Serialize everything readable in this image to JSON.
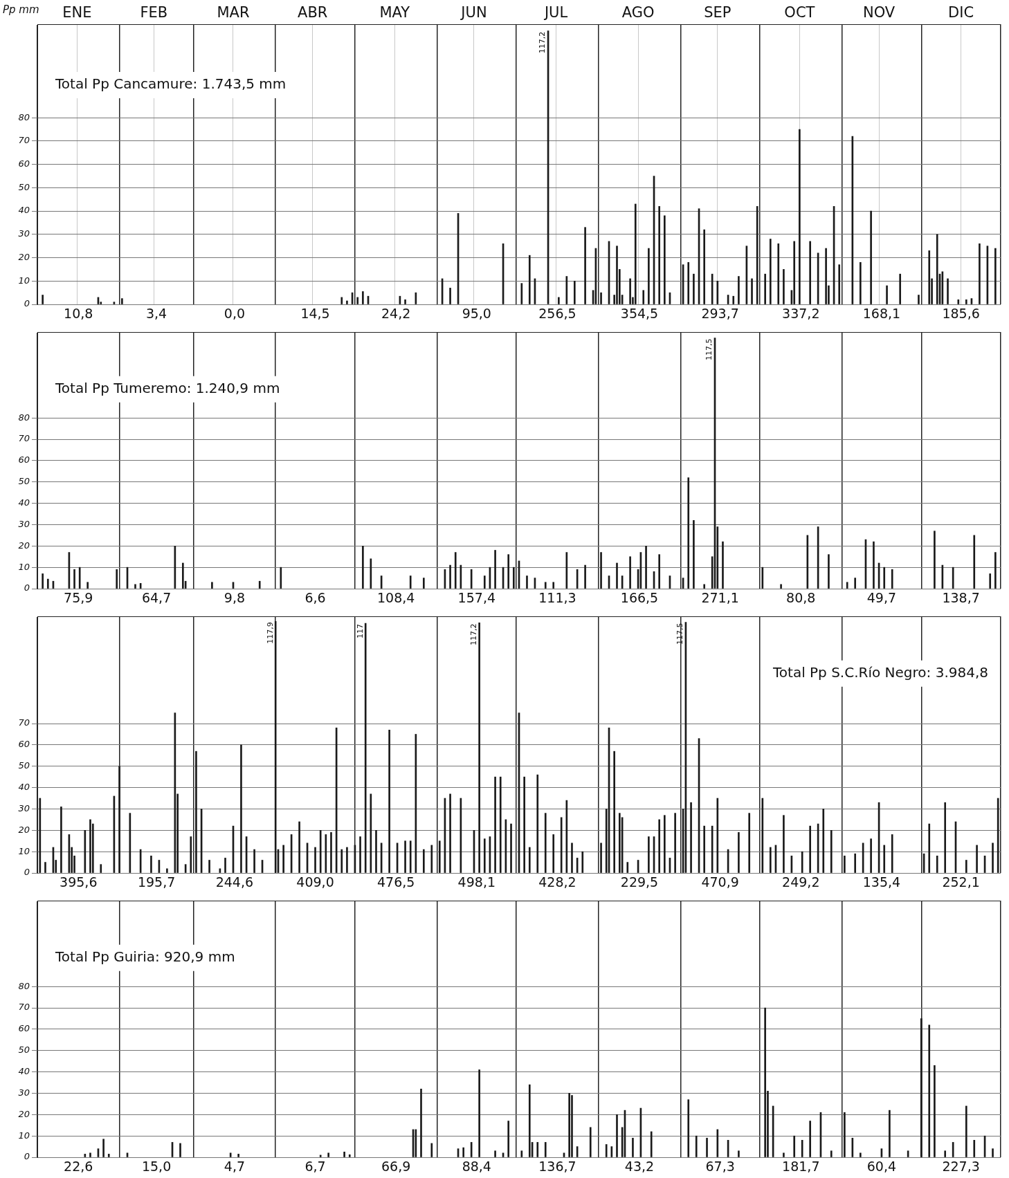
{
  "chart_data": [
    {
      "type": "bar",
      "title": "Total Pp Cancamure: 1.743,5 mm",
      "ylabel": "Pp mm",
      "color": "#1a1a1a",
      "grid": true,
      "xlim": [
        "--01-01",
        "--12-31"
      ],
      "ylim": [
        0,
        120
      ],
      "yticks": [
        0,
        10,
        20,
        30,
        40,
        50,
        60,
        70,
        80
      ],
      "xticks": [
        {
          "value": "--01-01",
          "label": null
        },
        {
          "value": "--01-16",
          "label": "ENE"
        },
        {
          "value": "--02-01",
          "label": null
        },
        {
          "value": "--02-14",
          "label": "FEB"
        },
        {
          "value": "--03-01",
          "label": null
        },
        {
          "value": "--03-16",
          "label": "MAR"
        },
        {
          "value": "--04-01",
          "label": null
        },
        {
          "value": "--04-15",
          "label": "ABR"
        },
        {
          "value": "--05-01",
          "label": null
        },
        {
          "value": "--05-16",
          "label": "MAY"
        },
        {
          "value": "--06-01",
          "label": null
        },
        {
          "value": "--06-15",
          "label": "JUN"
        },
        {
          "value": "--07-01",
          "label": null
        },
        {
          "value": "--07-16",
          "label": "JUL"
        },
        {
          "value": "--08-01",
          "label": null
        },
        {
          "value": "--08-16",
          "label": "AGO"
        },
        {
          "value": "--09-01",
          "label": null
        },
        {
          "value": "--09-15",
          "label": "SEP"
        },
        {
          "value": "--10-01",
          "label": null
        },
        {
          "value": "--10-16",
          "label": "OCT"
        },
        {
          "value": "--11-01",
          "label": null
        },
        {
          "value": "--11-15",
          "label": "NOV"
        },
        {
          "value": "--12-01",
          "label": null
        },
        {
          "value": "--12-16",
          "label": "DIC"
        },
        {
          "value": "--12-31",
          "label": null
        }
      ],
      "x": [
        "--01-03",
        "--01-24",
        "--01-25",
        "--01-30",
        "--02-02",
        "--04-26",
        "--04-28",
        "--04-30",
        "--05-02",
        "--05-04",
        "--05-06",
        "--05-18",
        "--05-20",
        "--05-24",
        "--06-03",
        "--06-06",
        "--06-09",
        "--06-26",
        "--07-03",
        "--07-06",
        "--07-08",
        "--07-13",
        "--07-17",
        "--07-20",
        "--07-23",
        "--07-27",
        "--07-30",
        "--07-31",
        "--08-02",
        "--08-05",
        "--08-07",
        "--08-08",
        "--08-09",
        "--08-10",
        "--08-13",
        "--08-14",
        "--08-15",
        "--08-18",
        "--08-20",
        "--08-22",
        "--08-24",
        "--08-26",
        "--08-28",
        "--09-02",
        "--09-04",
        "--09-06",
        "--09-08",
        "--09-10",
        "--09-13",
        "--09-15",
        "--09-19",
        "--09-21",
        "--09-23",
        "--09-26",
        "--09-28",
        "--09-30",
        "--10-03",
        "--10-05",
        "--10-08",
        "--10-10",
        "--10-13",
        "--10-14",
        "--10-16",
        "--10-20",
        "--10-23",
        "--10-26",
        "--10-27",
        "--10-29",
        "--10-31",
        "--11-05",
        "--11-08",
        "--11-12",
        "--11-18",
        "--11-23",
        "--11-30",
        "--12-04",
        "--12-05",
        "--12-07",
        "--12-08",
        "--12-09",
        "--12-11",
        "--12-15",
        "--12-18",
        "--12-20",
        "--12-23",
        "--12-26",
        "--12-29"
      ],
      "values": [
        4,
        3,
        1,
        1,
        2.5,
        3,
        1.5,
        5,
        3,
        5.5,
        3.5,
        3.5,
        2,
        5,
        11,
        7,
        39,
        26,
        9,
        21,
        11,
        117.2,
        3,
        12,
        10,
        33,
        6,
        24,
        5,
        27,
        4,
        25,
        15,
        4,
        11,
        3,
        43,
        6,
        24,
        55,
        42,
        38,
        5,
        17,
        18,
        13,
        41,
        32,
        13,
        10,
        4,
        3.5,
        12,
        25,
        11,
        42,
        13,
        28,
        26,
        15,
        6,
        27,
        75,
        27,
        22,
        24,
        8,
        42,
        17,
        72,
        18,
        40,
        8,
        13,
        4,
        23,
        11,
        30,
        13,
        14,
        11,
        2,
        2,
        2.5,
        26,
        25,
        24
      ],
      "annotations": [
        {
          "text": "117,2",
          "x": "--07-13",
          "y": 117.2
        },
        "10,8",
        "3,4",
        "0,0",
        "14,5",
        "24,2",
        "95,0",
        "256,5",
        "354,5",
        "293,7",
        "337,2",
        "168,1",
        "185,6"
      ]
    },
    {
      "type": "bar",
      "title": "Total Pp Tumeremo: 1.240,9 mm",
      "color": "#1a1a1a",
      "grid": true,
      "tick_labels": "y",
      "xlim": [
        "--01-01",
        "--12-31"
      ],
      "ylim": [
        0,
        120
      ],
      "yticks": [
        0,
        10,
        20,
        30,
        40,
        50,
        60,
        70,
        80
      ],
      "xticks": [
        {
          "value": "--01-01",
          "label": null
        },
        {
          "value": "--02-01",
          "label": null
        },
        {
          "value": "--03-01",
          "label": null
        },
        {
          "value": "--04-01",
          "label": null
        },
        {
          "value": "--05-01",
          "label": null
        },
        {
          "value": "--06-01",
          "label": null
        },
        {
          "value": "--07-01",
          "label": null
        },
        {
          "value": "--08-01",
          "label": null
        },
        {
          "value": "--09-01",
          "label": null
        },
        {
          "value": "--10-01",
          "label": null
        },
        {
          "value": "--11-01",
          "label": null
        },
        {
          "value": "--12-01",
          "label": null
        },
        {
          "value": "--12-31",
          "label": null
        }
      ],
      "x": [
        "--01-03",
        "--01-05",
        "--01-07",
        "--01-13",
        "--01-15",
        "--01-17",
        "--01-20",
        "--01-31",
        "--02-04",
        "--02-07",
        "--02-09",
        "--02-22",
        "--02-25",
        "--02-26",
        "--03-08",
        "--03-16",
        "--03-26",
        "--04-03",
        "--05-04",
        "--05-07",
        "--05-11",
        "--05-22",
        "--05-27",
        "--06-04",
        "--06-06",
        "--06-08",
        "--06-10",
        "--06-14",
        "--06-19",
        "--06-21",
        "--06-23",
        "--06-26",
        "--06-28",
        "--06-30",
        "--07-02",
        "--07-05",
        "--07-08",
        "--07-12",
        "--07-15",
        "--07-20",
        "--07-24",
        "--07-27",
        "--08-02",
        "--08-05",
        "--08-08",
        "--08-10",
        "--08-13",
        "--08-16",
        "--08-17",
        "--08-19",
        "--08-22",
        "--08-24",
        "--08-28",
        "--09-02",
        "--09-04",
        "--09-06",
        "--09-10",
        "--09-13",
        "--09-14",
        "--09-15",
        "--09-17",
        "--10-02",
        "--10-09",
        "--10-19",
        "--10-23",
        "--10-27",
        "--11-03",
        "--11-06",
        "--11-10",
        "--11-13",
        "--11-15",
        "--11-17",
        "--11-20",
        "--12-06",
        "--12-09",
        "--12-13",
        "--12-21",
        "--12-27",
        "--12-29"
      ],
      "values": [
        7,
        4.5,
        3.5,
        17,
        9,
        10,
        3,
        9,
        10,
        2,
        2.5,
        20,
        12,
        3.5,
        3,
        3,
        3.5,
        10,
        20,
        14,
        6,
        6,
        5,
        9,
        11,
        17,
        11,
        9,
        6,
        10,
        18,
        10,
        16,
        10,
        13,
        6,
        5,
        3,
        3,
        17,
        9,
        11,
        17,
        6,
        12,
        6,
        15,
        9,
        17,
        20,
        8,
        16,
        6,
        5,
        52,
        32,
        2,
        15,
        117.5,
        29,
        22,
        10,
        2,
        25,
        29,
        16,
        3,
        5,
        23,
        22,
        12,
        10,
        9,
        27,
        11,
        10,
        25,
        7,
        17
      ],
      "annotations": [
        {
          "text": "117,5",
          "x": "--09-14",
          "y": 117.5
        },
        "75,9",
        "64,7",
        "9,8",
        "6,6",
        "108,4",
        "157,4",
        "111,3",
        "166,5",
        "271,1",
        "80,8",
        "49,7",
        "138,7"
      ]
    },
    {
      "type": "bar",
      "title": "Total Pp S.C.Río Negro: 3.984,8",
      "color": "#1a1a1a",
      "grid": true,
      "tick_labels": "y",
      "xlim": [
        "--01-01",
        "--12-31"
      ],
      "ylim": [
        0,
        120
      ],
      "yticks": [
        0,
        10,
        20,
        30,
        40,
        50,
        60,
        70
      ],
      "xticks": [
        {
          "value": "--01-01",
          "label": null
        },
        {
          "value": "--02-01",
          "label": null
        },
        {
          "value": "--03-01",
          "label": null
        },
        {
          "value": "--04-01",
          "label": null
        },
        {
          "value": "--05-01",
          "label": null
        },
        {
          "value": "--06-01",
          "label": null
        },
        {
          "value": "--07-01",
          "label": null
        },
        {
          "value": "--08-01",
          "label": null
        },
        {
          "value": "--09-01",
          "label": null
        },
        {
          "value": "--10-01",
          "label": null
        },
        {
          "value": "--11-01",
          "label": null
        },
        {
          "value": "--12-01",
          "label": null
        },
        {
          "value": "--12-31",
          "label": null
        }
      ],
      "x": [
        "--01-02",
        "--01-04",
        "--01-07",
        "--01-08",
        "--01-10",
        "--01-13",
        "--01-14",
        "--01-15",
        "--01-19",
        "--01-21",
        "--01-22",
        "--01-25",
        "--01-30",
        "--02-01",
        "--02-05",
        "--02-09",
        "--02-13",
        "--02-16",
        "--02-19",
        "--02-22",
        "--02-23",
        "--02-26",
        "--02-28",
        "--03-02",
        "--03-04",
        "--03-07",
        "--03-11",
        "--03-13",
        "--03-16",
        "--03-19",
        "--03-21",
        "--03-24",
        "--03-27",
        "--04-01",
        "--04-02",
        "--04-04",
        "--04-07",
        "--04-10",
        "--04-13",
        "--04-16",
        "--04-18",
        "--04-20",
        "--04-22",
        "--04-24",
        "--04-26",
        "--04-28",
        "--05-01",
        "--05-03",
        "--05-05",
        "--05-07",
        "--05-09",
        "--05-11",
        "--05-14",
        "--05-17",
        "--05-20",
        "--05-22",
        "--05-24",
        "--05-27",
        "--05-30",
        "--06-02",
        "--06-04",
        "--06-06",
        "--06-10",
        "--06-15",
        "--06-17",
        "--06-19",
        "--06-21",
        "--06-23",
        "--06-25",
        "--06-27",
        "--06-29",
        "--07-02",
        "--07-04",
        "--07-06",
        "--07-09",
        "--07-12",
        "--07-15",
        "--07-18",
        "--07-20",
        "--07-22",
        "--07-24",
        "--07-26",
        "--08-02",
        "--08-04",
        "--08-05",
        "--08-07",
        "--08-09",
        "--08-10",
        "--08-12",
        "--08-16",
        "--08-20",
        "--08-22",
        "--08-24",
        "--08-26",
        "--08-28",
        "--08-30",
        "--09-02",
        "--09-03",
        "--09-05",
        "--09-08",
        "--09-10",
        "--09-13",
        "--09-15",
        "--09-19",
        "--09-23",
        "--09-27",
        "--10-02",
        "--10-05",
        "--10-07",
        "--10-10",
        "--10-13",
        "--10-17",
        "--10-20",
        "--10-23",
        "--10-25",
        "--10-28",
        "--11-02",
        "--11-06",
        "--11-09",
        "--11-12",
        "--11-15",
        "--11-17",
        "--11-20",
        "--12-02",
        "--12-04",
        "--12-07",
        "--12-10",
        "--12-14",
        "--12-18",
        "--12-22",
        "--12-25",
        "--12-28",
        "--12-30"
      ],
      "values": [
        35,
        5,
        12,
        6,
        31,
        18,
        12,
        8,
        20,
        25,
        23,
        4,
        36,
        50,
        28,
        11,
        8,
        6,
        2,
        75,
        37,
        4,
        17,
        57,
        30,
        6,
        2,
        7,
        22,
        60,
        17,
        11,
        6,
        117.9,
        11,
        13,
        18,
        24,
        14,
        12,
        20,
        18,
        19,
        68,
        11,
        12,
        13,
        17,
        117,
        37,
        20,
        14,
        67,
        14,
        15,
        15,
        65,
        11,
        13,
        15,
        35,
        37,
        35,
        20,
        117.2,
        16,
        17,
        45,
        45,
        25,
        23,
        75,
        45,
        12,
        46,
        28,
        18,
        26,
        34,
        14,
        7,
        10,
        14,
        30,
        68,
        57,
        28,
        26,
        5,
        6,
        17,
        17,
        25,
        27,
        7,
        28,
        30,
        117.5,
        33,
        63,
        22,
        22,
        35,
        11,
        19,
        28,
        35,
        12,
        13,
        27,
        8,
        10,
        22,
        23,
        30,
        20,
        8,
        9,
        14,
        16,
        33,
        13,
        18,
        9,
        23,
        8,
        33,
        24,
        6,
        13,
        8,
        14,
        35
      ],
      "annotations": [
        {
          "text": "117,9",
          "x": "--04-01",
          "y": 117.9
        },
        {
          "text": "117",
          "x": "--05-05",
          "y": 117
        },
        {
          "text": "117,2",
          "x": "--06-17",
          "y": 117.2
        },
        {
          "text": "117,5",
          "x": "--09-03",
          "y": 117.5
        },
        "395,6",
        "195,7",
        "244,6",
        "409,0",
        "476,5",
        "498,1",
        "428,2",
        "229,5",
        "470,9",
        "249,2",
        "135,4",
        "252,1"
      ]
    },
    {
      "type": "bar",
      "title": "Total Pp Guiria: 920,9 mm",
      "color": "#1a1a1a",
      "grid": true,
      "tick_labels": "y",
      "xlim": [
        "--01-01",
        "--12-31"
      ],
      "ylim": [
        0,
        120
      ],
      "yticks": [
        0,
        10,
        20,
        30,
        40,
        50,
        60,
        70,
        80
      ],
      "xticks": [
        {
          "value": "--01-01",
          "label": null
        },
        {
          "value": "--02-01",
          "label": null
        },
        {
          "value": "--03-01",
          "label": null
        },
        {
          "value": "--04-01",
          "label": null
        },
        {
          "value": "--05-01",
          "label": null
        },
        {
          "value": "--06-01",
          "label": null
        },
        {
          "value": "--07-01",
          "label": null
        },
        {
          "value": "--08-01",
          "label": null
        },
        {
          "value": "--09-01",
          "label": null
        },
        {
          "value": "--10-01",
          "label": null
        },
        {
          "value": "--11-01",
          "label": null
        },
        {
          "value": "--12-01",
          "label": null
        },
        {
          "value": "--12-31",
          "label": null
        }
      ],
      "x": [
        "--01-19",
        "--01-21",
        "--01-24",
        "--01-26",
        "--01-28",
        "--02-04",
        "--02-21",
        "--02-24",
        "--03-15",
        "--03-18",
        "--04-18",
        "--04-21",
        "--04-27",
        "--04-29",
        "--05-23",
        "--05-24",
        "--05-26",
        "--05-30",
        "--06-09",
        "--06-11",
        "--06-14",
        "--06-17",
        "--06-23",
        "--06-26",
        "--06-28",
        "--07-03",
        "--07-06",
        "--07-07",
        "--07-09",
        "--07-12",
        "--07-19",
        "--07-21",
        "--07-22",
        "--07-24",
        "--07-29",
        "--08-04",
        "--08-06",
        "--08-08",
        "--08-10",
        "--08-11",
        "--08-14",
        "--08-17",
        "--08-21",
        "--09-04",
        "--09-07",
        "--09-11",
        "--09-15",
        "--09-19",
        "--09-23",
        "--10-03",
        "--10-04",
        "--10-06",
        "--10-10",
        "--10-14",
        "--10-17",
        "--10-20",
        "--10-24",
        "--10-28",
        "--11-02",
        "--11-05",
        "--11-08",
        "--11-16",
        "--11-19",
        "--11-26",
        "--12-01",
        "--12-04",
        "--12-06",
        "--12-10",
        "--12-13",
        "--12-18",
        "--12-21",
        "--12-25",
        "--12-28"
      ],
      "values": [
        1.5,
        2,
        4,
        8.5,
        1.5,
        2,
        7,
        6.5,
        2,
        1.5,
        1,
        2,
        2.5,
        1.2,
        13,
        13,
        32,
        6.5,
        4,
        4.5,
        7,
        41,
        3,
        2,
        17,
        3,
        34,
        7,
        7,
        7,
        2,
        30,
        29,
        5,
        14,
        6,
        5,
        20,
        14,
        22,
        9,
        23,
        12,
        27,
        10,
        9,
        13,
        8,
        3,
        70,
        31,
        24,
        2,
        10,
        8,
        17,
        21,
        3,
        21,
        9,
        2,
        4,
        22,
        3,
        65,
        62,
        43,
        3,
        7,
        24,
        8,
        10,
        4
      ],
      "annotations": [
        "22,6",
        "15,0",
        "4,7",
        "6,7",
        "66,9",
        "88,4",
        "136,7",
        "43,2",
        "67,3",
        "181,7",
        "60,4",
        "227,3"
      ]
    }
  ]
}
